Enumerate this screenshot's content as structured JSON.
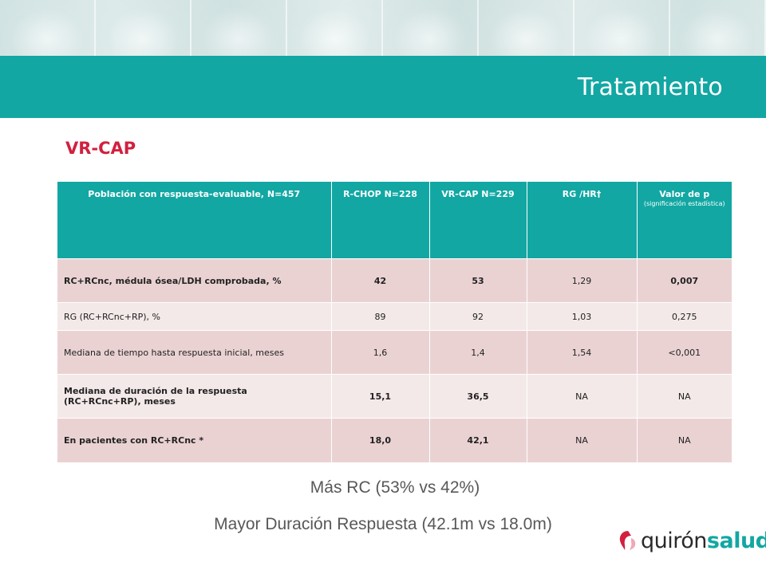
{
  "header": {
    "title": "Tratamiento"
  },
  "subtitle": "VR-CAP",
  "table": {
    "columns": [
      {
        "label": "Población con respuesta-evaluable, N=457"
      },
      {
        "label": "R-CHOP N=228"
      },
      {
        "label": "VR-CAP N=229"
      },
      {
        "label": "RG /HR†"
      },
      {
        "label": "Valor de p",
        "sub": "(significación estadística)"
      }
    ],
    "rows": [
      {
        "cells": [
          "RC+RCnc, médula ósea/LDH comprobada, %",
          "42",
          "53",
          "1,29",
          "0,007"
        ]
      },
      {
        "cells": [
          "RG (RC+RCnc+RP), %",
          "89",
          "92",
          "1,03",
          "0,275"
        ]
      },
      {
        "cells": [
          "Mediana de tiempo hasta respuesta inicial, meses",
          "1,6",
          "1,4",
          "1,54",
          "<0,001"
        ]
      },
      {
        "cells": [
          "Mediana de duración de la respuesta (RC+RCnc+RP), meses",
          "15,1",
          "36,5",
          "NA",
          "NA"
        ]
      },
      {
        "cells": [
          "En pacientes con RC+RCnc *",
          "18,0",
          "42,1",
          "NA",
          "NA"
        ]
      }
    ]
  },
  "notes": {
    "line1": "Más RC (53% vs 42%)",
    "line2": "Mayor Duración Respuesta (42.1m vs 18.0m)"
  },
  "logo": {
    "part1": "quirón",
    "part2": "salud",
    "mark_color": "#d2203f",
    "brand_color": "#12a7a3"
  }
}
